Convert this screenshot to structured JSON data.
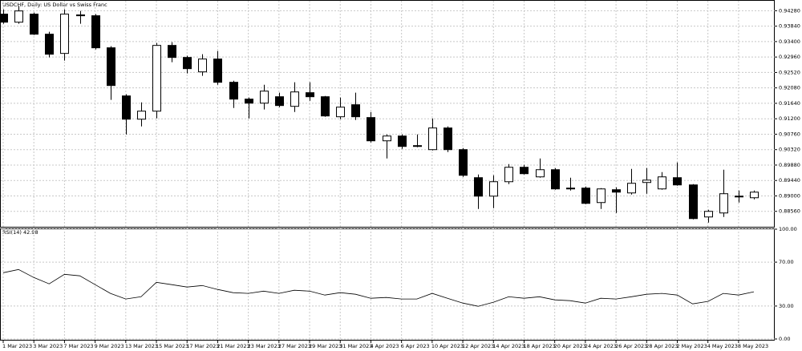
{
  "chart_data": [
    {
      "type": "candlestick",
      "title": "USDCHF, Daily:  US Dollar vs Swiss Franc",
      "categories": [
        "1 Mar 2023",
        null,
        "3 Mar 2023",
        null,
        "7 Mar 2023",
        null,
        "9 Mar 2023",
        null,
        "13 Mar 2023",
        null,
        "15 Mar 2023",
        null,
        "17 Mar 2023",
        null,
        "21 Mar 2023",
        null,
        "23 Mar 2023",
        null,
        "27 Mar 2023",
        null,
        "29 Mar 2023",
        null,
        "31 Mar 2023",
        null,
        "4 Apr 2023",
        null,
        "6 Apr 2023",
        null,
        "10 Apr 2023",
        null,
        "12 Apr 2023",
        null,
        "14 Apr 2023",
        null,
        "18 Apr 2023",
        null,
        "20 Apr 2023",
        null,
        "24 Apr 2023",
        null,
        "26 Apr 2023",
        null,
        "28 Apr 2023",
        null,
        "2 May 2023",
        null,
        "4 May 2023",
        null,
        "8 May 2023",
        null
      ],
      "open": [
        0.94183,
        0.93954,
        0.94183,
        0.93611,
        0.93063,
        0.9416,
        0.94137,
        0.93223,
        0.91851,
        0.91188,
        0.91417,
        0.93291,
        0.92948,
        0.92537,
        0.92903,
        0.9224,
        0.9176,
        0.91645,
        0.91828,
        0.91554,
        0.91943,
        0.91828,
        0.91257,
        0.916,
        0.91234,
        0.90571,
        0.90708,
        0.90434,
        0.9032,
        0.90937,
        0.9032,
        0.8952,
        0.88994,
        0.89405,
        0.89817,
        0.89543,
        0.89748,
        0.89223,
        0.89223,
        0.88811,
        0.89177,
        0.89085,
        0.89383,
        0.892,
        0.8952,
        0.89314,
        0.884,
        0.88514,
        0.88994,
        0.88948
      ],
      "high": [
        0.9432,
        0.94411,
        0.94228,
        0.9368,
        0.9432,
        0.94274,
        0.94183,
        0.93268,
        0.91897,
        0.91668,
        0.9336,
        0.93383,
        0.92994,
        0.9304,
        0.93131,
        0.92285,
        0.91805,
        0.92171,
        0.91943,
        0.9224,
        0.9224,
        0.91851,
        0.91805,
        0.91943,
        0.91394,
        0.90754,
        0.90754,
        0.90754,
        0.91211,
        0.90983,
        0.90365,
        0.89611,
        0.89588,
        0.89908,
        0.89885,
        0.90068,
        0.89794,
        0.8952,
        0.89268,
        0.89223,
        0.89245,
        0.89771,
        0.89794,
        0.8968,
        0.89954,
        0.89337,
        0.88605,
        0.89748,
        0.89154,
        0.89154
      ],
      "low": [
        0.93908,
        0.93908,
        0.93588,
        0.92948,
        0.92857,
        0.93908,
        0.93177,
        0.91737,
        0.90754,
        0.90983,
        0.91211,
        0.92811,
        0.92491,
        0.92423,
        0.92171,
        0.91508,
        0.91211,
        0.91463,
        0.91531,
        0.91394,
        0.91714,
        0.91257,
        0.91188,
        0.91165,
        0.90525,
        0.90068,
        0.90343,
        0.90388,
        0.90297,
        0.90251,
        0.89543,
        0.88628,
        0.88651,
        0.89337,
        0.89611,
        0.8952,
        0.89177,
        0.89154,
        0.88765,
        0.88628,
        0.88514,
        0.8904,
        0.89063,
        0.89177,
        0.89291,
        0.88331,
        0.8824,
        0.884,
        0.88811,
        0.88903
      ],
      "close": [
        0.93954,
        0.94274,
        0.93611,
        0.9304,
        0.94183,
        0.94137,
        0.93223,
        0.92148,
        0.91188,
        0.91417,
        0.93291,
        0.92948,
        0.92628,
        0.92903,
        0.9224,
        0.9176,
        0.91645,
        0.91988,
        0.91577,
        0.91965,
        0.91828,
        0.9128,
        0.91531,
        0.91257,
        0.90571,
        0.90708,
        0.90411,
        0.90411,
        0.90937,
        0.9032,
        0.89588,
        0.88994,
        0.89405,
        0.89817,
        0.89634,
        0.89748,
        0.892,
        0.892,
        0.88788,
        0.892,
        0.89108,
        0.8936,
        0.89451,
        0.89543,
        0.89314,
        0.88354,
        0.8856,
        0.89063,
        0.88971,
        0.89108
      ],
      "up_color": "#ffffff",
      "down_color": "#000000",
      "wick_color": "#000000",
      "ylim": [
        0.8812,
        0.9454
      ],
      "yticks": [
        {
          "value": 0.9428,
          "label": "0.94280"
        },
        {
          "value": 0.9384,
          "label": "0.93840"
        },
        {
          "value": 0.934,
          "label": "0.93400"
        },
        {
          "value": 0.9296,
          "label": "0.92960"
        },
        {
          "value": 0.9252,
          "label": "0.92520"
        },
        {
          "value": 0.9208,
          "label": "0.92080"
        },
        {
          "value": 0.9164,
          "label": "0.91640"
        },
        {
          "value": 0.912,
          "label": "0.91200"
        },
        {
          "value": 0.9076,
          "label": "0.90760"
        },
        {
          "value": 0.9032,
          "label": "0.90320"
        },
        {
          "value": 0.8988,
          "label": "0.89880"
        },
        {
          "value": 0.8944,
          "label": "0.89440"
        },
        {
          "value": 0.89,
          "label": "0.89000"
        },
        {
          "value": 0.8856,
          "label": "0.88560"
        }
      ],
      "grid": true
    },
    {
      "type": "line",
      "title": "RSI(14) 42.98",
      "color": "#000000",
      "values": [
        60.4,
        63.3,
        56.0,
        50.2,
        58.9,
        57.5,
        49.5,
        41.5,
        36.4,
        38.5,
        51.6,
        49.5,
        47.3,
        48.7,
        45.1,
        42.2,
        41.5,
        43.6,
        41.5,
        44.4,
        43.6,
        40.0,
        42.2,
        40.7,
        37.1,
        37.8,
        36.4,
        36.4,
        41.5,
        37.1,
        32.7,
        29.8,
        33.5,
        38.5,
        37.1,
        38.5,
        35.6,
        34.9,
        32.7,
        37.1,
        36.4,
        38.5,
        40.7,
        41.5,
        40.0,
        32.0,
        34.2,
        41.5,
        40.0,
        42.98
      ],
      "ylim": [
        0,
        100
      ],
      "yticks": [
        {
          "value": 100,
          "label": "100.00"
        },
        {
          "value": 70,
          "label": "70.00"
        },
        {
          "value": 30,
          "label": "30.00"
        },
        {
          "value": 0,
          "label": "0.00"
        }
      ],
      "grid": true
    }
  ]
}
